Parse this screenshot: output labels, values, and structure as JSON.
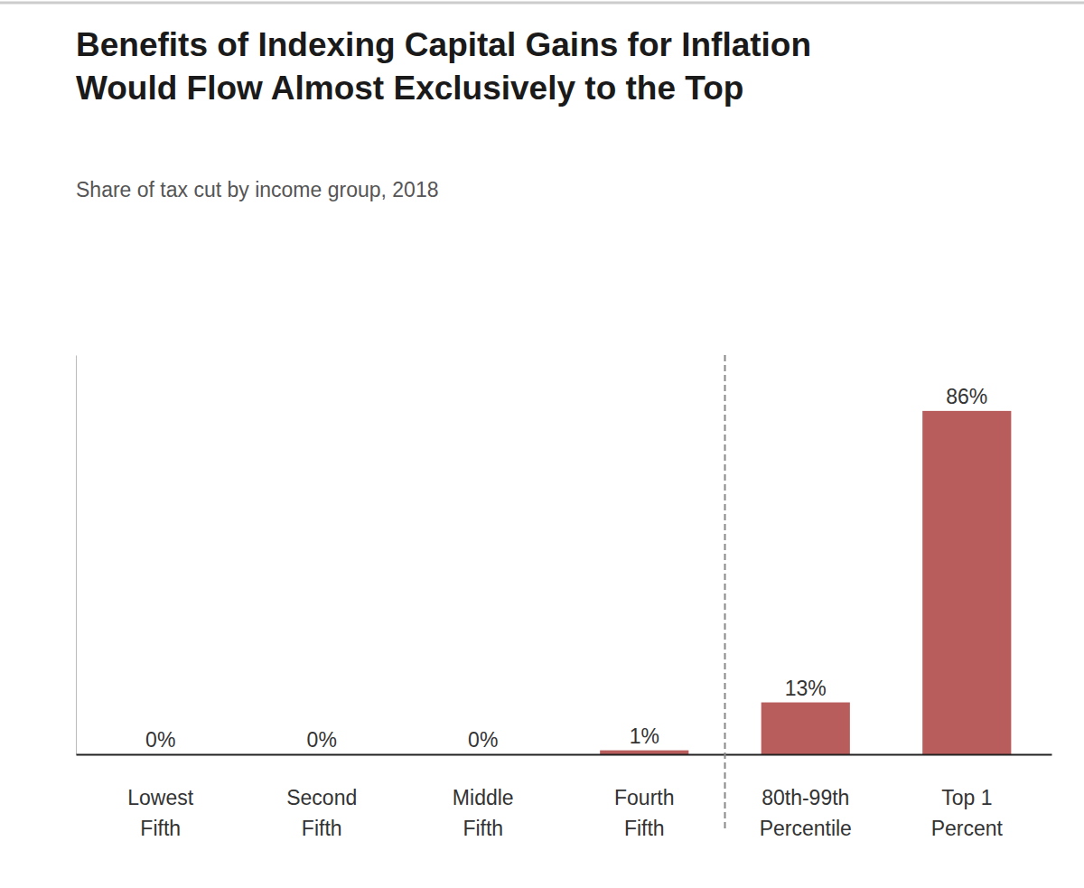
{
  "chart_data": {
    "type": "bar",
    "title": [
      "Benefits of Indexing Capital Gains for Inflation",
      "Would Flow Almost Exclusively to the Top"
    ],
    "subtitle": "Share of tax cut by income group, 2018",
    "categories": [
      [
        "Lowest",
        "Fifth"
      ],
      [
        "Second",
        "Fifth"
      ],
      [
        "Middle",
        "Fifth"
      ],
      [
        "Fourth",
        "Fifth"
      ],
      [
        "80th-99th",
        "Percentile"
      ],
      [
        "Top 1",
        "Percent"
      ]
    ],
    "values": [
      0,
      0,
      0,
      1,
      13,
      86
    ],
    "value_labels": [
      "0%",
      "0%",
      "0%",
      "1%",
      "13%",
      "86%"
    ],
    "data_labels": true,
    "color": "#b85c5c",
    "ylim": [
      0,
      100
    ],
    "grid": false,
    "tick_labels": "x"
  }
}
